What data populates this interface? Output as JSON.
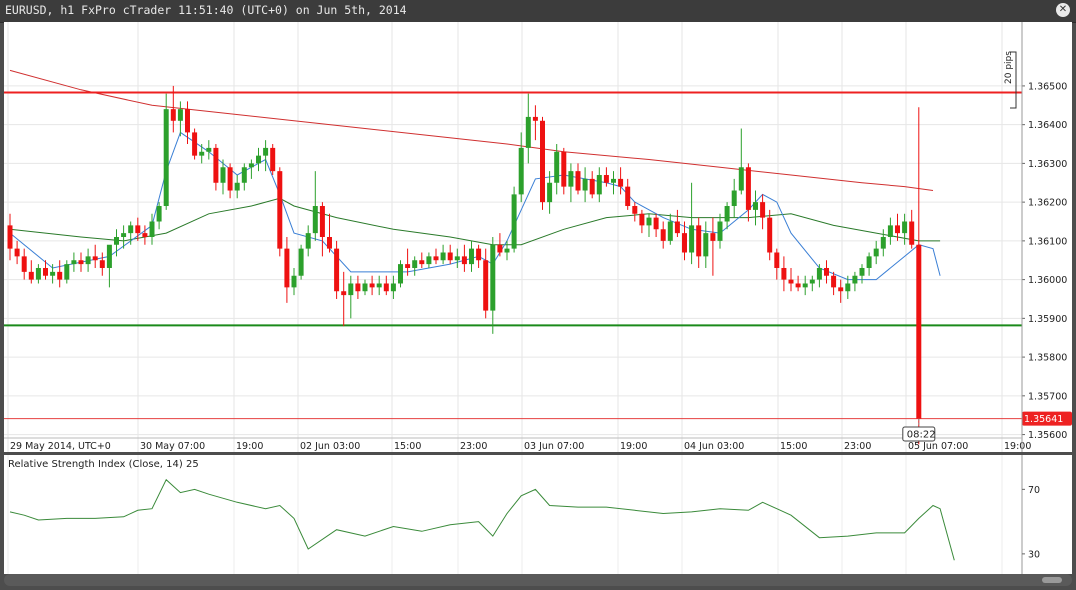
{
  "window": {
    "title": "EURUSD, h1 FxPro cTrader 11:51:40 (UTC+0) on Jun 5th, 2014",
    "close_icon": "close-icon"
  },
  "colors": {
    "bull": "#2ca02c",
    "bear": "#ee1111",
    "wick": "#444444",
    "background": "#ffffff",
    "ma_fast": "#3a7fd5",
    "ma_mid": "#2a7a2a",
    "ma_slow": "#d03030",
    "resistance": "#ee2020",
    "support": "#1a8a1a",
    "price_line": "#e64040",
    "rsi": "#3a8a3a"
  },
  "chart_data": {
    "type": "candlestick",
    "symbol": "EURUSD",
    "timeframe": "h1",
    "ylim": [
      1.35555,
      1.36665
    ],
    "yticks": [
      "1.36500",
      "1.36400",
      "1.36300",
      "1.36200",
      "1.36100",
      "1.36000",
      "1.35900",
      "1.35800",
      "1.35700",
      "1.35600"
    ],
    "x_labels": [
      "29 May 2014, UTC+0",
      "30 May 07:00",
      "19:00",
      "02 Jun 03:00",
      "15:00",
      "23:00",
      "03 Jun 07:00",
      "19:00",
      "04 Jun 03:00",
      "15:00",
      "23:00",
      "05 Jun 07:00",
      "19:00"
    ],
    "current_price": "1.35641",
    "time_marker": "08:22",
    "pips_label": "20 pips",
    "resistance_level": 1.36483,
    "support_level": 1.35882,
    "candles": [
      {
        "o": 1.3614,
        "h": 1.3617,
        "l": 1.3605,
        "c": 1.3608
      },
      {
        "o": 1.3608,
        "h": 1.361,
        "l": 1.3604,
        "c": 1.3606
      },
      {
        "o": 1.3606,
        "h": 1.3608,
        "l": 1.36,
        "c": 1.3602
      },
      {
        "o": 1.3602,
        "h": 1.3605,
        "l": 1.3599,
        "c": 1.36
      },
      {
        "o": 1.36,
        "h": 1.3604,
        "l": 1.3599,
        "c": 1.3603
      },
      {
        "o": 1.3603,
        "h": 1.3605,
        "l": 1.36,
        "c": 1.3601
      },
      {
        "o": 1.3601,
        "h": 1.3604,
        "l": 1.3599,
        "c": 1.3602
      },
      {
        "o": 1.3602,
        "h": 1.3605,
        "l": 1.3598,
        "c": 1.36
      },
      {
        "o": 1.36,
        "h": 1.3605,
        "l": 1.3599,
        "c": 1.3604
      },
      {
        "o": 1.3604,
        "h": 1.3607,
        "l": 1.3602,
        "c": 1.3605
      },
      {
        "o": 1.3605,
        "h": 1.3607,
        "l": 1.3602,
        "c": 1.3604
      },
      {
        "o": 1.3604,
        "h": 1.3608,
        "l": 1.3602,
        "c": 1.3606
      },
      {
        "o": 1.3606,
        "h": 1.3609,
        "l": 1.3603,
        "c": 1.3605
      },
      {
        "o": 1.3605,
        "h": 1.3607,
        "l": 1.3601,
        "c": 1.3603
      },
      {
        "o": 1.3603,
        "h": 1.3608,
        "l": 1.3598,
        "c": 1.3609
      },
      {
        "o": 1.3609,
        "h": 1.3613,
        "l": 1.3606,
        "c": 1.3611
      },
      {
        "o": 1.3611,
        "h": 1.3614,
        "l": 1.3608,
        "c": 1.3612
      },
      {
        "o": 1.3612,
        "h": 1.3615,
        "l": 1.3609,
        "c": 1.3614
      },
      {
        "o": 1.3614,
        "h": 1.3616,
        "l": 1.361,
        "c": 1.3612
      },
      {
        "o": 1.3612,
        "h": 1.3614,
        "l": 1.3609,
        "c": 1.3611
      },
      {
        "o": 1.3611,
        "h": 1.3617,
        "l": 1.3609,
        "c": 1.3615
      },
      {
        "o": 1.3615,
        "h": 1.362,
        "l": 1.3613,
        "c": 1.3619
      },
      {
        "o": 1.3619,
        "h": 1.3648,
        "l": 1.3618,
        "c": 1.3644
      },
      {
        "o": 1.3644,
        "h": 1.365,
        "l": 1.3638,
        "c": 1.3641
      },
      {
        "o": 1.3641,
        "h": 1.3646,
        "l": 1.3637,
        "c": 1.3644
      },
      {
        "o": 1.3644,
        "h": 1.3646,
        "l": 1.3635,
        "c": 1.3638
      },
      {
        "o": 1.3638,
        "h": 1.3639,
        "l": 1.3631,
        "c": 1.3632
      },
      {
        "o": 1.3632,
        "h": 1.3635,
        "l": 1.363,
        "c": 1.3633
      },
      {
        "o": 1.3633,
        "h": 1.3636,
        "l": 1.3631,
        "c": 1.3634
      },
      {
        "o": 1.3634,
        "h": 1.3635,
        "l": 1.3623,
        "c": 1.3625
      },
      {
        "o": 1.3625,
        "h": 1.3631,
        "l": 1.3622,
        "c": 1.3629
      },
      {
        "o": 1.3629,
        "h": 1.363,
        "l": 1.3621,
        "c": 1.3623
      },
      {
        "o": 1.3623,
        "h": 1.3627,
        "l": 1.3621,
        "c": 1.3625
      },
      {
        "o": 1.3625,
        "h": 1.363,
        "l": 1.3623,
        "c": 1.3629
      },
      {
        "o": 1.3629,
        "h": 1.3631,
        "l": 1.3626,
        "c": 1.363
      },
      {
        "o": 1.363,
        "h": 1.3634,
        "l": 1.3628,
        "c": 1.3632
      },
      {
        "o": 1.3632,
        "h": 1.3636,
        "l": 1.3628,
        "c": 1.3634
      },
      {
        "o": 1.3634,
        "h": 1.3635,
        "l": 1.3627,
        "c": 1.3628
      },
      {
        "o": 1.3628,
        "h": 1.3629,
        "l": 1.3606,
        "c": 1.3608
      },
      {
        "o": 1.3608,
        "h": 1.3611,
        "l": 1.3594,
        "c": 1.3598
      },
      {
        "o": 1.3598,
        "h": 1.3603,
        "l": 1.3596,
        "c": 1.3601
      },
      {
        "o": 1.3601,
        "h": 1.3609,
        "l": 1.36,
        "c": 1.3608
      },
      {
        "o": 1.3608,
        "h": 1.3614,
        "l": 1.3606,
        "c": 1.3612
      },
      {
        "o": 1.3612,
        "h": 1.3628,
        "l": 1.361,
        "c": 1.3619
      },
      {
        "o": 1.3619,
        "h": 1.362,
        "l": 1.3606,
        "c": 1.3611
      },
      {
        "o": 1.3611,
        "h": 1.3617,
        "l": 1.3607,
        "c": 1.3608
      },
      {
        "o": 1.3608,
        "h": 1.361,
        "l": 1.3595,
        "c": 1.3597
      },
      {
        "o": 1.3597,
        "h": 1.3602,
        "l": 1.3588,
        "c": 1.3596
      },
      {
        "o": 1.3596,
        "h": 1.3601,
        "l": 1.359,
        "c": 1.3599
      },
      {
        "o": 1.3599,
        "h": 1.3601,
        "l": 1.3595,
        "c": 1.3597
      },
      {
        "o": 1.3597,
        "h": 1.36,
        "l": 1.3596,
        "c": 1.3599
      },
      {
        "o": 1.3599,
        "h": 1.3601,
        "l": 1.3596,
        "c": 1.3598
      },
      {
        "o": 1.3598,
        "h": 1.3601,
        "l": 1.3596,
        "c": 1.3599
      },
      {
        "o": 1.3599,
        "h": 1.3601,
        "l": 1.3596,
        "c": 1.3597
      },
      {
        "o": 1.3597,
        "h": 1.3601,
        "l": 1.3595,
        "c": 1.3599
      },
      {
        "o": 1.3599,
        "h": 1.3605,
        "l": 1.3598,
        "c": 1.3604
      },
      {
        "o": 1.3604,
        "h": 1.3608,
        "l": 1.3601,
        "c": 1.3603
      },
      {
        "o": 1.3603,
        "h": 1.3606,
        "l": 1.3601,
        "c": 1.3605
      },
      {
        "o": 1.3605,
        "h": 1.3607,
        "l": 1.3603,
        "c": 1.3604
      },
      {
        "o": 1.3604,
        "h": 1.3607,
        "l": 1.3603,
        "c": 1.3606
      },
      {
        "o": 1.3606,
        "h": 1.3608,
        "l": 1.3604,
        "c": 1.3605
      },
      {
        "o": 1.3605,
        "h": 1.3609,
        "l": 1.3604,
        "c": 1.3607
      },
      {
        "o": 1.3607,
        "h": 1.3609,
        "l": 1.3604,
        "c": 1.3605
      },
      {
        "o": 1.3605,
        "h": 1.3608,
        "l": 1.3603,
        "c": 1.3606
      },
      {
        "o": 1.3606,
        "h": 1.3609,
        "l": 1.3602,
        "c": 1.3604
      },
      {
        "o": 1.3604,
        "h": 1.361,
        "l": 1.3602,
        "c": 1.3608
      },
      {
        "o": 1.3608,
        "h": 1.3609,
        "l": 1.3603,
        "c": 1.3605
      },
      {
        "o": 1.3605,
        "h": 1.3608,
        "l": 1.359,
        "c": 1.3592
      },
      {
        "o": 1.3592,
        "h": 1.3611,
        "l": 1.3586,
        "c": 1.3609
      },
      {
        "o": 1.3609,
        "h": 1.3612,
        "l": 1.3606,
        "c": 1.3607
      },
      {
        "o": 1.3607,
        "h": 1.361,
        "l": 1.3605,
        "c": 1.3608
      },
      {
        "o": 1.3608,
        "h": 1.3624,
        "l": 1.3607,
        "c": 1.3622
      },
      {
        "o": 1.3622,
        "h": 1.3638,
        "l": 1.362,
        "c": 1.3634
      },
      {
        "o": 1.3634,
        "h": 1.3648,
        "l": 1.363,
        "c": 1.3642
      },
      {
        "o": 1.3642,
        "h": 1.3645,
        "l": 1.3636,
        "c": 1.3641
      },
      {
        "o": 1.3641,
        "h": 1.3642,
        "l": 1.3618,
        "c": 1.362
      },
      {
        "o": 1.362,
        "h": 1.3628,
        "l": 1.3617,
        "c": 1.3625
      },
      {
        "o": 1.3625,
        "h": 1.3635,
        "l": 1.3622,
        "c": 1.3633
      },
      {
        "o": 1.3633,
        "h": 1.3634,
        "l": 1.3622,
        "c": 1.3624
      },
      {
        "o": 1.3624,
        "h": 1.363,
        "l": 1.362,
        "c": 1.3628
      },
      {
        "o": 1.3628,
        "h": 1.363,
        "l": 1.3622,
        "c": 1.3623
      },
      {
        "o": 1.3623,
        "h": 1.3629,
        "l": 1.362,
        "c": 1.3626
      },
      {
        "o": 1.3626,
        "h": 1.3628,
        "l": 1.3621,
        "c": 1.3622
      },
      {
        "o": 1.3622,
        "h": 1.3629,
        "l": 1.362,
        "c": 1.3627
      },
      {
        "o": 1.3627,
        "h": 1.3629,
        "l": 1.3624,
        "c": 1.3625
      },
      {
        "o": 1.3625,
        "h": 1.3628,
        "l": 1.3622,
        "c": 1.3626
      },
      {
        "o": 1.3626,
        "h": 1.3629,
        "l": 1.3622,
        "c": 1.3624
      },
      {
        "o": 1.3624,
        "h": 1.3626,
        "l": 1.3618,
        "c": 1.3619
      },
      {
        "o": 1.3619,
        "h": 1.362,
        "l": 1.3615,
        "c": 1.3617
      },
      {
        "o": 1.3617,
        "h": 1.3618,
        "l": 1.3612,
        "c": 1.3614
      },
      {
        "o": 1.3614,
        "h": 1.3617,
        "l": 1.3611,
        "c": 1.3616
      },
      {
        "o": 1.3616,
        "h": 1.3617,
        "l": 1.3611,
        "c": 1.3613
      },
      {
        "o": 1.3613,
        "h": 1.3615,
        "l": 1.3608,
        "c": 1.361
      },
      {
        "o": 1.361,
        "h": 1.3617,
        "l": 1.3609,
        "c": 1.3615
      },
      {
        "o": 1.3615,
        "h": 1.3618,
        "l": 1.3611,
        "c": 1.3612
      },
      {
        "o": 1.3612,
        "h": 1.3615,
        "l": 1.3605,
        "c": 1.3607
      },
      {
        "o": 1.3607,
        "h": 1.3625,
        "l": 1.3604,
        "c": 1.3614
      },
      {
        "o": 1.3614,
        "h": 1.3616,
        "l": 1.3603,
        "c": 1.3606
      },
      {
        "o": 1.3606,
        "h": 1.3615,
        "l": 1.3603,
        "c": 1.3612
      },
      {
        "o": 1.3612,
        "h": 1.3616,
        "l": 1.3601,
        "c": 1.361
      },
      {
        "o": 1.361,
        "h": 1.3617,
        "l": 1.3608,
        "c": 1.3615
      },
      {
        "o": 1.3615,
        "h": 1.362,
        "l": 1.3613,
        "c": 1.3619
      },
      {
        "o": 1.3619,
        "h": 1.3626,
        "l": 1.3616,
        "c": 1.3623
      },
      {
        "o": 1.3623,
        "h": 1.3639,
        "l": 1.3622,
        "c": 1.3629
      },
      {
        "o": 1.3629,
        "h": 1.363,
        "l": 1.3615,
        "c": 1.3618
      },
      {
        "o": 1.3618,
        "h": 1.3623,
        "l": 1.3614,
        "c": 1.362
      },
      {
        "o": 1.362,
        "h": 1.3622,
        "l": 1.3613,
        "c": 1.3616
      },
      {
        "o": 1.3616,
        "h": 1.3618,
        "l": 1.3605,
        "c": 1.3607
      },
      {
        "o": 1.3607,
        "h": 1.3608,
        "l": 1.36,
        "c": 1.3603
      },
      {
        "o": 1.3603,
        "h": 1.3606,
        "l": 1.3597,
        "c": 1.36
      },
      {
        "o": 1.36,
        "h": 1.3603,
        "l": 1.3597,
        "c": 1.3599
      },
      {
        "o": 1.3599,
        "h": 1.3601,
        "l": 1.3597,
        "c": 1.3598
      },
      {
        "o": 1.3598,
        "h": 1.3601,
        "l": 1.3596,
        "c": 1.3599
      },
      {
        "o": 1.3599,
        "h": 1.3601,
        "l": 1.3597,
        "c": 1.36
      },
      {
        "o": 1.36,
        "h": 1.3604,
        "l": 1.3598,
        "c": 1.3603
      },
      {
        "o": 1.3603,
        "h": 1.3605,
        "l": 1.3599,
        "c": 1.3601
      },
      {
        "o": 1.3601,
        "h": 1.3602,
        "l": 1.3596,
        "c": 1.3598
      },
      {
        "o": 1.3598,
        "h": 1.36,
        "l": 1.3594,
        "c": 1.3597
      },
      {
        "o": 1.3597,
        "h": 1.3601,
        "l": 1.3595,
        "c": 1.3599
      },
      {
        "o": 1.3599,
        "h": 1.3602,
        "l": 1.3597,
        "c": 1.3601
      },
      {
        "o": 1.3601,
        "h": 1.3604,
        "l": 1.3599,
        "c": 1.3603
      },
      {
        "o": 1.3603,
        "h": 1.3607,
        "l": 1.3601,
        "c": 1.3606
      },
      {
        "o": 1.3606,
        "h": 1.361,
        "l": 1.3604,
        "c": 1.3608
      },
      {
        "o": 1.3608,
        "h": 1.3613,
        "l": 1.3606,
        "c": 1.3611
      },
      {
        "o": 1.3611,
        "h": 1.3616,
        "l": 1.3609,
        "c": 1.3614
      },
      {
        "o": 1.3614,
        "h": 1.3617,
        "l": 1.361,
        "c": 1.3612
      },
      {
        "o": 1.3612,
        "h": 1.3617,
        "l": 1.3609,
        "c": 1.3615
      },
      {
        "o": 1.3615,
        "h": 1.3618,
        "l": 1.3608,
        "c": 1.3609
      },
      {
        "o": 1.3609,
        "h": 1.36445,
        "l": 1.35575,
        "c": 1.35641
      }
    ],
    "ma_fast": [
      [
        0,
        1.3612
      ],
      [
        6,
        1.3603
      ],
      [
        14,
        1.3606
      ],
      [
        20,
        1.3614
      ],
      [
        22,
        1.3628
      ],
      [
        24,
        1.3638
      ],
      [
        28,
        1.3633
      ],
      [
        32,
        1.3627
      ],
      [
        36,
        1.3631
      ],
      [
        38,
        1.3622
      ],
      [
        40,
        1.3612
      ],
      [
        44,
        1.361
      ],
      [
        48,
        1.3602
      ],
      [
        56,
        1.3602
      ],
      [
        62,
        1.3604
      ],
      [
        66,
        1.3606
      ],
      [
        68,
        1.3604
      ],
      [
        70,
        1.361
      ],
      [
        72,
        1.3618
      ],
      [
        74,
        1.3626
      ],
      [
        78,
        1.3627
      ],
      [
        84,
        1.3625
      ],
      [
        86,
        1.3624
      ],
      [
        88,
        1.362
      ],
      [
        92,
        1.3616
      ],
      [
        96,
        1.3613
      ],
      [
        100,
        1.3612
      ],
      [
        104,
        1.3618
      ],
      [
        106,
        1.3622
      ],
      [
        108,
        1.362
      ],
      [
        110,
        1.3612
      ],
      [
        114,
        1.3603
      ],
      [
        118,
        1.36
      ],
      [
        122,
        1.36
      ],
      [
        126,
        1.3606
      ],
      [
        128,
        1.3609
      ],
      [
        130,
        1.3608
      ],
      [
        131,
        1.3601
      ]
    ],
    "ma_mid": [
      [
        0,
        1.3613
      ],
      [
        10,
        1.3611
      ],
      [
        16,
        1.361
      ],
      [
        22,
        1.3612
      ],
      [
        28,
        1.3617
      ],
      [
        34,
        1.3619
      ],
      [
        38,
        1.3621
      ],
      [
        40,
        1.3619
      ],
      [
        46,
        1.3616
      ],
      [
        54,
        1.3613
      ],
      [
        62,
        1.3611
      ],
      [
        68,
        1.3609
      ],
      [
        72,
        1.3609
      ],
      [
        78,
        1.3613
      ],
      [
        84,
        1.3616
      ],
      [
        90,
        1.3617
      ],
      [
        96,
        1.3616
      ],
      [
        104,
        1.3616
      ],
      [
        110,
        1.3617
      ],
      [
        116,
        1.3614
      ],
      [
        122,
        1.3612
      ],
      [
        128,
        1.361
      ],
      [
        131,
        1.361
      ]
    ],
    "ma_slow": [
      [
        0,
        1.3654
      ],
      [
        10,
        1.3649
      ],
      [
        20,
        1.3645
      ],
      [
        30,
        1.3643
      ],
      [
        40,
        1.3641
      ],
      [
        50,
        1.3639
      ],
      [
        60,
        1.3637
      ],
      [
        70,
        1.3635
      ],
      [
        78,
        1.3633
      ],
      [
        90,
        1.3631
      ],
      [
        100,
        1.3629
      ],
      [
        110,
        1.3627
      ],
      [
        120,
        1.3625
      ],
      [
        126,
        1.3624
      ],
      [
        130,
        1.3623
      ]
    ],
    "rsi": {
      "label": "Relative Strength Index (Close, 14) 25",
      "yticks": [
        "70",
        "30"
      ],
      "ylim": [
        20,
        82
      ],
      "points": [
        [
          0,
          56
        ],
        [
          2,
          54
        ],
        [
          4,
          51
        ],
        [
          8,
          52
        ],
        [
          12,
          52
        ],
        [
          16,
          53
        ],
        [
          18,
          57
        ],
        [
          20,
          58
        ],
        [
          22,
          76
        ],
        [
          24,
          68
        ],
        [
          26,
          70
        ],
        [
          28,
          67
        ],
        [
          32,
          62
        ],
        [
          36,
          58
        ],
        [
          38,
          60
        ],
        [
          40,
          52
        ],
        [
          42,
          33
        ],
        [
          46,
          45
        ],
        [
          50,
          41
        ],
        [
          54,
          47
        ],
        [
          58,
          44
        ],
        [
          62,
          48
        ],
        [
          66,
          50
        ],
        [
          68,
          41
        ],
        [
          70,
          55
        ],
        [
          72,
          66
        ],
        [
          74,
          70
        ],
        [
          76,
          60
        ],
        [
          80,
          59
        ],
        [
          84,
          59
        ],
        [
          88,
          57
        ],
        [
          92,
          55
        ],
        [
          96,
          56
        ],
        [
          100,
          58
        ],
        [
          104,
          57
        ],
        [
          106,
          62
        ],
        [
          108,
          58
        ],
        [
          110,
          54
        ],
        [
          114,
          40
        ],
        [
          118,
          41
        ],
        [
          122,
          43
        ],
        [
          126,
          43
        ],
        [
          128,
          52
        ],
        [
          130,
          60
        ],
        [
          131,
          58
        ],
        [
          133,
          26
        ]
      ]
    }
  }
}
